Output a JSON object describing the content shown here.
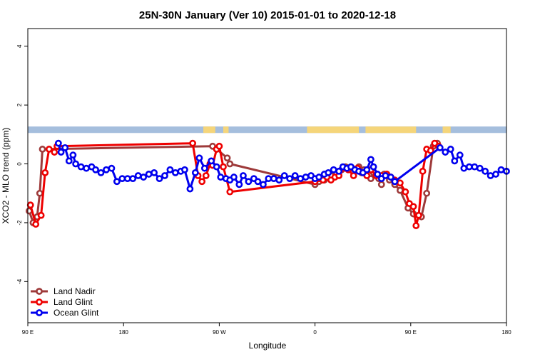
{
  "chart_data": {
    "type": "line",
    "title": "25N-30N January (Ver 10)   2015-01-01 to 2020-12-18",
    "xlabel": "Longitude",
    "ylabel": "XCO2 - MLO trend (ppm)",
    "xlim": [
      90,
      450
    ],
    "ylim": [
      -5.4,
      4.6
    ],
    "x_ticks": [
      {
        "value": 90,
        "label": "90 E"
      },
      {
        "value": 162,
        "label": "180"
      },
      {
        "value": 234,
        "label": "90 W"
      },
      {
        "value": 306,
        "label": "0"
      },
      {
        "value": 378,
        "label": "90 E"
      },
      {
        "value": 450,
        "label": "180"
      }
    ],
    "y_ticks": [
      -4,
      -2,
      0,
      2,
      4
    ],
    "legend_position": "bottom-left",
    "land_mask": {
      "land_color": "#F5D57A",
      "ocean_color": "#A5BEDD",
      "y_range": [
        1.05,
        1.27
      ],
      "land_segments": [
        [
          222,
          231
        ],
        [
          237,
          241
        ],
        [
          300,
          339
        ],
        [
          344,
          382
        ],
        [
          402,
          408
        ]
      ]
    },
    "series": [
      {
        "name": "Land Nadir",
        "color": "#9E3A3A",
        "x": [
          91,
          94,
          97,
          99,
          101,
          229,
          232,
          240,
          242,
          306,
          309,
          313,
          318,
          322,
          326,
          329,
          334,
          339,
          341,
          343,
          348,
          350,
          354,
          356,
          358,
          362,
          366,
          370,
          376,
          380,
          386,
          390,
          395,
          398
        ],
        "y": [
          -1.6,
          -2.0,
          -1.8,
          -1.0,
          0.5,
          0.6,
          0.5,
          0.2,
          0.0,
          -0.7,
          -0.6,
          -0.55,
          -0.4,
          -0.3,
          -0.2,
          -0.1,
          -0.15,
          -0.1,
          -0.3,
          -0.2,
          -0.5,
          -0.3,
          -0.5,
          -0.7,
          -0.35,
          -0.55,
          -0.7,
          -0.9,
          -1.5,
          -1.7,
          -1.8,
          -1.0,
          0.6,
          0.7
        ]
      },
      {
        "name": "Land Glint",
        "color": "#EE0000",
        "x": [
          92,
          96,
          100,
          103,
          106,
          110,
          112,
          214,
          218,
          221,
          224,
          227,
          229,
          232,
          234,
          237,
          242,
          306,
          309,
          312,
          315,
          318,
          321,
          324,
          328,
          331,
          335,
          338,
          342,
          345,
          348,
          352,
          356,
          360,
          363,
          366,
          370,
          374,
          377,
          380,
          382,
          384,
          387,
          390,
          393,
          396,
          399
        ],
        "y": [
          -1.4,
          -2.05,
          -1.75,
          -0.3,
          0.5,
          0.4,
          0.6,
          0.7,
          -0.4,
          -0.6,
          -0.4,
          0.0,
          -0.05,
          0.5,
          0.6,
          -0.1,
          -0.95,
          -0.6,
          -0.5,
          -0.55,
          -0.45,
          -0.55,
          -0.45,
          -0.4,
          -0.15,
          -0.2,
          -0.4,
          -0.15,
          -0.3,
          -0.4,
          -0.2,
          -0.4,
          -0.4,
          -0.35,
          -0.45,
          -0.55,
          -0.65,
          -0.95,
          -1.35,
          -1.45,
          -2.1,
          -1.75,
          -0.25,
          0.5,
          0.45,
          0.7,
          0.6
        ]
      },
      {
        "name": "Ocean Glint",
        "color": "#0000EE",
        "x": [
          113,
          115,
          118,
          121,
          124,
          126,
          130,
          134,
          138,
          141,
          145,
          149,
          153,
          157,
          161,
          165,
          169,
          173,
          177,
          181,
          185,
          189,
          193,
          197,
          201,
          205,
          208,
          212,
          216,
          219,
          223,
          228,
          232,
          235,
          239,
          242,
          245,
          249,
          252,
          256,
          260,
          263,
          267,
          271,
          275,
          279,
          283,
          287,
          291,
          295,
          299,
          303,
          306,
          309,
          313,
          316,
          320,
          324,
          327,
          330,
          333,
          336,
          339,
          342,
          345,
          348,
          350,
          353,
          356,
          359,
          363,
          366,
          400,
          404,
          408,
          411,
          415,
          418,
          422,
          426,
          430,
          434,
          438,
          442,
          446,
          450
        ],
        "y": [
          0.7,
          0.4,
          0.55,
          0.1,
          0.3,
          0.0,
          -0.1,
          -0.15,
          -0.1,
          -0.2,
          -0.3,
          -0.2,
          -0.15,
          -0.6,
          -0.5,
          -0.5,
          -0.5,
          -0.4,
          -0.45,
          -0.35,
          -0.3,
          -0.5,
          -0.4,
          -0.2,
          -0.3,
          -0.25,
          -0.2,
          -0.85,
          -0.3,
          0.2,
          -0.15,
          0.1,
          -0.1,
          -0.45,
          -0.5,
          -0.55,
          -0.45,
          -0.7,
          -0.4,
          -0.6,
          -0.5,
          -0.6,
          -0.7,
          -0.5,
          -0.5,
          -0.55,
          -0.4,
          -0.5,
          -0.4,
          -0.5,
          -0.45,
          -0.4,
          -0.5,
          -0.45,
          -0.35,
          -0.3,
          -0.2,
          -0.25,
          -0.1,
          -0.15,
          -0.1,
          -0.2,
          -0.25,
          -0.3,
          -0.2,
          0.15,
          -0.1,
          -0.35,
          -0.5,
          -0.4,
          -0.45,
          -0.6,
          0.55,
          0.4,
          0.5,
          0.1,
          0.3,
          -0.15,
          -0.1,
          -0.1,
          -0.15,
          -0.25,
          -0.4,
          -0.35,
          -0.2,
          -0.25
        ]
      }
    ]
  }
}
